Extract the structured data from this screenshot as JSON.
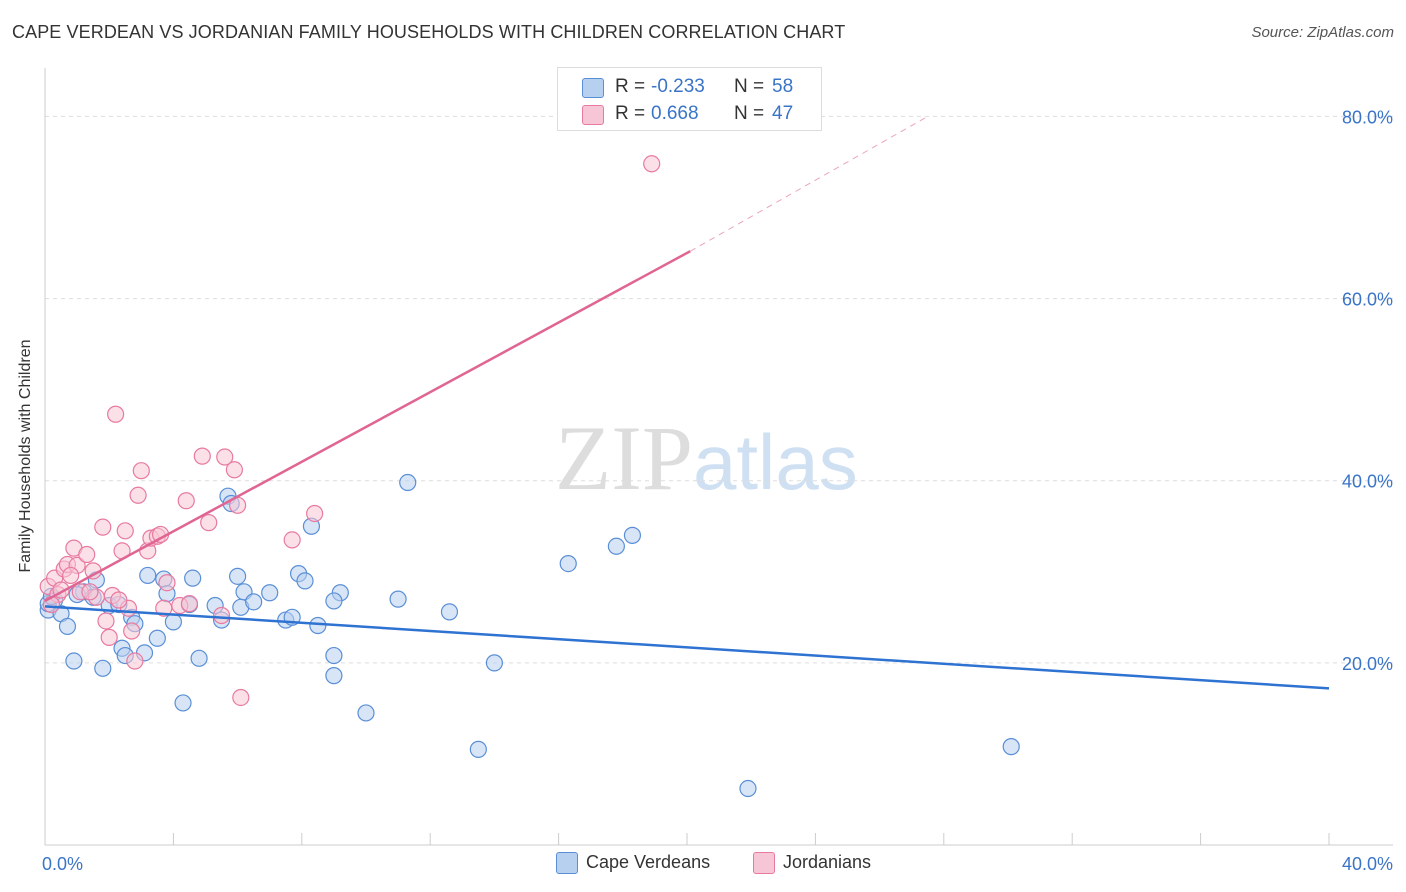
{
  "header": {
    "title": "CAPE VERDEAN VS JORDANIAN FAMILY HOUSEHOLDS WITH CHILDREN CORRELATION CHART",
    "source": "Source: ZipAtlas.com"
  },
  "watermark": {
    "part1": "ZIP",
    "part2": "atlas"
  },
  "legend": {
    "rows": [
      {
        "r_label": "R =",
        "r_value": "-0.233",
        "n_label": "N =",
        "n_value": "58",
        "color": "#5a8fd6",
        "fill": "#b8d0f0"
      },
      {
        "r_label": "R =",
        "r_value": "0.668",
        "n_label": "N =",
        "n_value": "47",
        "color": "#e87aa0",
        "fill": "#f7c6d6"
      }
    ]
  },
  "chart_data": {
    "type": "scatter",
    "ylabel": "Family Households with Children",
    "xlim": [
      0,
      40
    ],
    "ylim": [
      0,
      84
    ],
    "x_tick_labels": [
      {
        "value": 0,
        "label": "0.0%"
      },
      {
        "value": 40,
        "label": "40.0%"
      }
    ],
    "y_tick_labels": [
      {
        "value": 20,
        "label": "20.0%"
      },
      {
        "value": 40,
        "label": "40.0%"
      },
      {
        "value": 60,
        "label": "60.0%"
      },
      {
        "value": 80,
        "label": "80.0%"
      }
    ],
    "grid": true,
    "legend_position": "top-center",
    "series": [
      {
        "name": "Cape Verdeans",
        "color": "#5a8fd6",
        "fill": "#b8d0f0",
        "trend_color": "#2e72d2",
        "trend": {
          "x0": 0,
          "y0": 26.2,
          "x1": 40,
          "y1": 17.2,
          "dashed_to": null
        },
        "points": [
          [
            0.1,
            25.8
          ],
          [
            0.3,
            26.9
          ],
          [
            0.5,
            25.4
          ],
          [
            0.7,
            24.0
          ],
          [
            0.9,
            20.2
          ],
          [
            1.2,
            27.8
          ],
          [
            1.5,
            27.2
          ],
          [
            1.6,
            29.1
          ],
          [
            1.8,
            19.4
          ],
          [
            2.0,
            26.3
          ],
          [
            2.3,
            26.4
          ],
          [
            2.4,
            21.6
          ],
          [
            2.5,
            20.8
          ],
          [
            2.7,
            25.0
          ],
          [
            2.8,
            24.3
          ],
          [
            3.1,
            21.1
          ],
          [
            3.2,
            29.6
          ],
          [
            3.5,
            22.7
          ],
          [
            3.7,
            29.2
          ],
          [
            3.8,
            27.6
          ],
          [
            4.0,
            24.5
          ],
          [
            4.3,
            15.6
          ],
          [
            4.5,
            26.4
          ],
          [
            4.6,
            29.3
          ],
          [
            4.8,
            20.5
          ],
          [
            5.3,
            26.3
          ],
          [
            5.5,
            24.7
          ],
          [
            5.7,
            38.3
          ],
          [
            5.8,
            37.5
          ],
          [
            6.0,
            29.5
          ],
          [
            6.1,
            26.1
          ],
          [
            6.2,
            27.8
          ],
          [
            6.5,
            26.7
          ],
          [
            7.0,
            27.7
          ],
          [
            7.5,
            24.7
          ],
          [
            7.7,
            25.0
          ],
          [
            7.9,
            29.8
          ],
          [
            8.1,
            29.0
          ],
          [
            8.3,
            35.0
          ],
          [
            8.5,
            24.1
          ],
          [
            9.0,
            20.8
          ],
          [
            9.0,
            18.6
          ],
          [
            9.2,
            27.7
          ],
          [
            9.0,
            26.8
          ],
          [
            10.0,
            14.5
          ],
          [
            11.0,
            27.0
          ],
          [
            11.3,
            39.8
          ],
          [
            12.6,
            25.6
          ],
          [
            13.5,
            10.5
          ],
          [
            14.0,
            20.0
          ],
          [
            16.3,
            30.9
          ],
          [
            17.8,
            32.8
          ],
          [
            18.3,
            34.0
          ],
          [
            21.9,
            6.2
          ],
          [
            30.1,
            10.8
          ],
          [
            0.1,
            26.5
          ],
          [
            0.2,
            27.3
          ],
          [
            1.0,
            27.5
          ]
        ]
      },
      {
        "name": "Jordanians",
        "color": "#e87aa0",
        "fill": "#f7c6d6",
        "trend_color": "#e06592",
        "trend": {
          "x0": 0,
          "y0": 26.8,
          "x1": 20.1,
          "y1": 65.2,
          "dashed_to": {
            "x": 27.5,
            "y": 80.0
          }
        },
        "points": [
          [
            0.1,
            28.4
          ],
          [
            0.3,
            29.3
          ],
          [
            0.4,
            27.5
          ],
          [
            0.6,
            30.3
          ],
          [
            0.7,
            30.8
          ],
          [
            0.9,
            32.6
          ],
          [
            1.0,
            30.7
          ],
          [
            1.1,
            27.8
          ],
          [
            1.3,
            31.9
          ],
          [
            1.5,
            30.1
          ],
          [
            1.6,
            27.2
          ],
          [
            1.8,
            34.9
          ],
          [
            1.9,
            24.6
          ],
          [
            2.0,
            22.8
          ],
          [
            2.1,
            27.4
          ],
          [
            2.2,
            47.3
          ],
          [
            2.4,
            32.3
          ],
          [
            2.5,
            34.5
          ],
          [
            2.6,
            26.0
          ],
          [
            2.7,
            23.5
          ],
          [
            2.8,
            20.2
          ],
          [
            2.9,
            38.4
          ],
          [
            3.0,
            41.1
          ],
          [
            3.2,
            32.3
          ],
          [
            3.3,
            33.7
          ],
          [
            3.5,
            33.9
          ],
          [
            3.7,
            26.0
          ],
          [
            3.8,
            28.8
          ],
          [
            4.2,
            26.3
          ],
          [
            4.4,
            37.8
          ],
          [
            4.5,
            26.5
          ],
          [
            4.9,
            42.7
          ],
          [
            5.1,
            35.4
          ],
          [
            5.5,
            25.2
          ],
          [
            5.6,
            42.6
          ],
          [
            5.9,
            41.2
          ],
          [
            6.0,
            37.3
          ],
          [
            6.1,
            16.2
          ],
          [
            7.7,
            33.5
          ],
          [
            8.4,
            36.4
          ],
          [
            18.9,
            74.8
          ],
          [
            0.2,
            26.4
          ],
          [
            0.5,
            28.0
          ],
          [
            0.8,
            29.6
          ],
          [
            1.4,
            27.8
          ],
          [
            2.3,
            26.9
          ],
          [
            3.6,
            34.1
          ]
        ]
      }
    ]
  }
}
